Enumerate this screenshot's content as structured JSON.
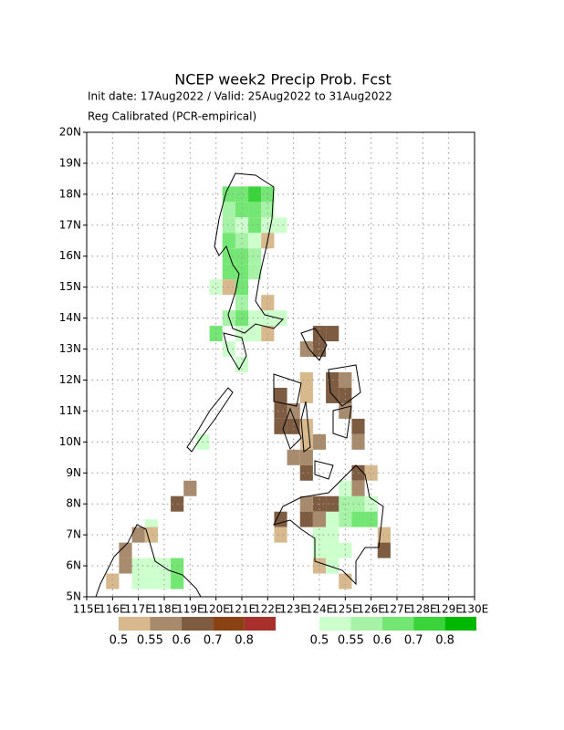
{
  "chart_data": {
    "type": "grid-map",
    "title": "NCEP week2 Precip Prob. Fcst",
    "subtitle": "Init date: 17Aug2022 / Valid: 25Aug2022 to 31Aug2022",
    "note": "Reg Calibrated (PCR-empirical)",
    "xlim": [
      115,
      130
    ],
    "ylim": [
      5,
      20
    ],
    "xticks": [
      {
        "value": 115,
        "label": "115E"
      },
      {
        "value": 116,
        "label": "116E"
      },
      {
        "value": 117,
        "label": "117E"
      },
      {
        "value": 118,
        "label": "118E"
      },
      {
        "value": 119,
        "label": "119E"
      },
      {
        "value": 120,
        "label": "120E"
      },
      {
        "value": 121,
        "label": "121E"
      },
      {
        "value": 122,
        "label": "122E"
      },
      {
        "value": 123,
        "label": "123E"
      },
      {
        "value": 124,
        "label": "124E"
      },
      {
        "value": 125,
        "label": "125E"
      },
      {
        "value": 126,
        "label": "126E"
      },
      {
        "value": 127,
        "label": "127E"
      },
      {
        "value": 128,
        "label": "128E"
      },
      {
        "value": 129,
        "label": "129E"
      },
      {
        "value": 130,
        "label": "130E"
      }
    ],
    "yticks": [
      {
        "value": 5,
        "label": "5N"
      },
      {
        "value": 6,
        "label": "6N"
      },
      {
        "value": 7,
        "label": "7N"
      },
      {
        "value": 8,
        "label": "8N"
      },
      {
        "value": 9,
        "label": "9N"
      },
      {
        "value": 10,
        "label": "10N"
      },
      {
        "value": 11,
        "label": "11N"
      },
      {
        "value": 12,
        "label": "12N"
      },
      {
        "value": 13,
        "label": "13N"
      },
      {
        "value": 14,
        "label": "14N"
      },
      {
        "value": 15,
        "label": "15N"
      },
      {
        "value": 16,
        "label": "16N"
      },
      {
        "value": 17,
        "label": "17N"
      },
      {
        "value": 18,
        "label": "18N"
      },
      {
        "value": 19,
        "label": "19N"
      },
      {
        "value": 20,
        "label": "20N"
      }
    ],
    "grid": true,
    "cell_size": 0.5,
    "dry_levels": [
      0.5,
      0.55,
      0.6,
      0.7,
      0.8
    ],
    "dry_colors": [
      "#d7b98d",
      "#a88a6c",
      "#7d5c42",
      "#8a4212",
      "#a8302c"
    ],
    "wet_levels": [
      0.5,
      0.55,
      0.6,
      0.7,
      0.8
    ],
    "wet_colors": [
      "#ccffcc",
      "#a6f2a6",
      "#73e673",
      "#3ad43a",
      "#00b800"
    ],
    "wet_cells": [
      [
        120.25,
        17.75,
        0.6
      ],
      [
        120.75,
        17.75,
        0.6
      ],
      [
        121.25,
        17.75,
        0.7
      ],
      [
        121.75,
        17.75,
        0.6
      ],
      [
        120.25,
        17.25,
        0.55
      ],
      [
        120.75,
        17.25,
        0.6
      ],
      [
        121.25,
        17.25,
        0.6
      ],
      [
        121.75,
        17.25,
        0.55
      ],
      [
        120.25,
        16.75,
        0.55
      ],
      [
        120.75,
        16.75,
        0.5
      ],
      [
        121.25,
        16.75,
        0.6
      ],
      [
        121.75,
        16.75,
        0.5
      ],
      [
        122.25,
        16.75,
        0.5
      ],
      [
        120.25,
        16.25,
        0.6
      ],
      [
        120.75,
        16.25,
        0.55
      ],
      [
        121.25,
        16.25,
        0.5
      ],
      [
        120.25,
        15.75,
        0.6
      ],
      [
        120.75,
        15.75,
        0.6
      ],
      [
        121.25,
        15.75,
        0.55
      ],
      [
        120.25,
        15.25,
        0.6
      ],
      [
        120.75,
        15.25,
        0.6
      ],
      [
        121.25,
        15.25,
        0.55
      ],
      [
        119.75,
        14.75,
        0.5
      ],
      [
        120.75,
        14.75,
        0.6
      ],
      [
        120.75,
        14.25,
        0.55
      ],
      [
        120.25,
        13.75,
        0.55
      ],
      [
        120.75,
        13.75,
        0.6
      ],
      [
        121.25,
        13.75,
        0.5
      ],
      [
        121.75,
        13.75,
        0.5
      ],
      [
        122.25,
        13.75,
        0.5
      ],
      [
        119.75,
        13.25,
        0.6
      ],
      [
        120.75,
        13.25,
        0.5
      ],
      [
        121.25,
        13.25,
        0.5
      ],
      [
        120.25,
        12.75,
        0.5
      ],
      [
        120.75,
        12.25,
        0.5
      ],
      [
        119.25,
        9.75,
        0.5
      ],
      [
        124.75,
        8.25,
        0.5
      ],
      [
        124.75,
        7.75,
        0.55
      ],
      [
        125.25,
        7.75,
        0.55
      ],
      [
        125.75,
        7.75,
        0.5
      ],
      [
        124.25,
        7.25,
        0.5
      ],
      [
        124.75,
        7.25,
        0.55
      ],
      [
        125.25,
        7.25,
        0.6
      ],
      [
        125.75,
        7.25,
        0.6
      ],
      [
        123.75,
        6.75,
        0.5
      ],
      [
        124.25,
        6.75,
        0.5
      ],
      [
        123.75,
        6.25,
        0.5
      ],
      [
        124.25,
        6.25,
        0.5
      ],
      [
        124.75,
        6.25,
        0.5
      ],
      [
        124.25,
        5.75,
        0.5
      ],
      [
        117.25,
        7.0,
        0.5
      ],
      [
        116.75,
        5.75,
        0.5
      ],
      [
        117.25,
        5.75,
        0.5
      ],
      [
        117.75,
        5.75,
        0.5
      ],
      [
        118.25,
        5.75,
        0.6
      ],
      [
        116.75,
        5.25,
        0.5
      ],
      [
        117.25,
        5.25,
        0.5
      ],
      [
        117.75,
        5.25,
        0.5
      ],
      [
        118.25,
        5.25,
        0.6
      ]
    ],
    "dry_cells": [
      [
        121.75,
        16.25,
        0.5
      ],
      [
        120.25,
        14.75,
        0.5
      ],
      [
        121.75,
        14.25,
        0.5
      ],
      [
        121.75,
        13.25,
        0.5
      ],
      [
        123.75,
        13.25,
        0.6
      ],
      [
        124.25,
        13.25,
        0.6
      ],
      [
        123.25,
        12.75,
        0.55
      ],
      [
        123.75,
        12.75,
        0.6
      ],
      [
        123.25,
        11.75,
        0.5
      ],
      [
        124.25,
        11.75,
        0.6
      ],
      [
        124.75,
        11.75,
        0.55
      ],
      [
        122.25,
        11.25,
        0.6
      ],
      [
        123.25,
        11.25,
        0.5
      ],
      [
        124.25,
        11.25,
        0.6
      ],
      [
        124.75,
        11.25,
        0.6
      ],
      [
        122.25,
        10.75,
        0.6
      ],
      [
        122.75,
        10.75,
        0.55
      ],
      [
        124.75,
        10.75,
        0.55
      ],
      [
        122.25,
        10.25,
        0.6
      ],
      [
        122.75,
        10.25,
        0.6
      ],
      [
        123.25,
        10.25,
        0.5
      ],
      [
        125.25,
        10.25,
        0.6
      ],
      [
        123.25,
        9.75,
        0.5
      ],
      [
        123.75,
        9.75,
        0.55
      ],
      [
        125.25,
        9.75,
        0.55
      ],
      [
        122.75,
        9.25,
        0.55
      ],
      [
        123.25,
        9.25,
        0.55
      ],
      [
        123.25,
        8.75,
        0.6
      ],
      [
        125.25,
        8.75,
        0.6
      ],
      [
        125.75,
        8.75,
        0.5
      ],
      [
        118.75,
        8.25,
        0.55
      ],
      [
        125.25,
        8.25,
        0.55
      ],
      [
        118.25,
        7.75,
        0.6
      ],
      [
        123.25,
        7.75,
        0.55
      ],
      [
        123.75,
        7.75,
        0.6
      ],
      [
        124.25,
        7.75,
        0.6
      ],
      [
        122.25,
        7.25,
        0.6
      ],
      [
        123.25,
        7.25,
        0.6
      ],
      [
        123.75,
        7.25,
        0.55
      ],
      [
        122.25,
        6.75,
        0.5
      ],
      [
        126.25,
        6.75,
        0.5
      ],
      [
        126.25,
        6.25,
        0.6
      ],
      [
        123.75,
        5.75,
        0.5
      ],
      [
        124.75,
        5.25,
        0.5
      ],
      [
        116.75,
        6.75,
        0.55
      ],
      [
        117.25,
        6.75,
        0.5
      ],
      [
        116.25,
        6.25,
        0.55
      ],
      [
        116.25,
        5.75,
        0.55
      ],
      [
        115.75,
        5.25,
        0.5
      ]
    ]
  }
}
